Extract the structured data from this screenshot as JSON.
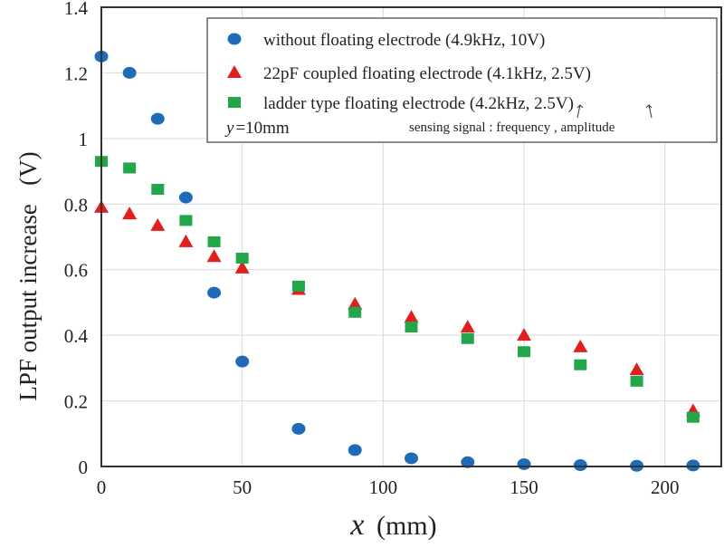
{
  "chart_data": {
    "type": "scatter",
    "xlabel_var": "x",
    "xlabel_unit": "(mm)",
    "ylabel": "LPF output increase   (V)",
    "xlim": [
      0,
      220
    ],
    "ylim": [
      0,
      1.4
    ],
    "xticks": [
      0,
      50,
      100,
      150,
      200
    ],
    "yticks": [
      0,
      0.2,
      0.4,
      0.6,
      0.8,
      1,
      1.2,
      1.4
    ],
    "xtick_labels": [
      "0",
      "50",
      "100",
      "150",
      "200"
    ],
    "ytick_labels": [
      "0",
      "0.2",
      "0.4",
      "0.6",
      "0.8",
      "1",
      "1.2",
      "1.4"
    ],
    "grid": true,
    "legend_position": "top-right",
    "x": [
      0,
      10,
      20,
      30,
      40,
      50,
      70,
      90,
      110,
      130,
      150,
      170,
      190,
      210
    ],
    "series": [
      {
        "name": "without floating electrode (4.9kHz,  10V)",
        "marker": "circle",
        "color": "#1f6bb8",
        "values": [
          1.25,
          1.2,
          1.06,
          0.82,
          0.53,
          0.32,
          0.115,
          0.05,
          0.025,
          0.013,
          0.007,
          0.004,
          0.002,
          0.003
        ]
      },
      {
        "name": "22pF coupled floating electrode (4.1kHz,  2.5V)",
        "marker": "triangle",
        "color": "#e0201c",
        "values": [
          0.79,
          0.77,
          0.735,
          0.685,
          0.64,
          0.605,
          0.54,
          0.495,
          0.455,
          0.425,
          0.4,
          0.365,
          0.295,
          0.17
        ]
      },
      {
        "name": "ladder type floating electrode (4.2kHz,  2.5V)",
        "marker": "square",
        "color": "#22a64a",
        "values": [
          0.93,
          0.91,
          0.845,
          0.75,
          0.685,
          0.635,
          0.55,
          0.47,
          0.425,
          0.39,
          0.35,
          0.31,
          0.26,
          0.15
        ]
      }
    ],
    "annotations": {
      "condition": "=10mm",
      "condition_var": "y",
      "note": "sensing signal : frequency , amplitude"
    }
  }
}
